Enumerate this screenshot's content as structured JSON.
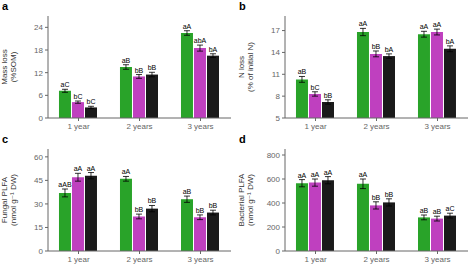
{
  "chart_data": [
    {
      "type": "bar",
      "title": "a",
      "y_label": "Mass loss\n(%SOM)",
      "categories": [
        "1 year",
        "2 years",
        "3 years"
      ],
      "ylim": [
        0,
        27
      ],
      "yticks": [
        0,
        6,
        12,
        18,
        24
      ],
      "grid": false,
      "series": [
        {
          "color": "#29a329",
          "values": [
            7.2,
            13.5,
            22.5
          ],
          "errors": [
            0.4,
            0.6,
            0.6
          ],
          "labels": [
            "aC",
            "aB",
            "aA"
          ]
        },
        {
          "color": "#bf40bf",
          "values": [
            4.2,
            11.0,
            18.5
          ],
          "errors": [
            0.3,
            0.5,
            0.8
          ],
          "labels": [
            "bC",
            "bB",
            "abA"
          ]
        },
        {
          "color": "#1a1a1a",
          "values": [
            2.8,
            11.5,
            16.5
          ],
          "errors": [
            0.3,
            0.6,
            0.5
          ],
          "labels": [
            "bC",
            "bB",
            "bA"
          ]
        }
      ]
    },
    {
      "type": "bar",
      "title": "b",
      "y_label": "N loss\n(% of initial N)",
      "categories": [
        "1 year",
        "2 years",
        "3 years"
      ],
      "ylim": [
        5,
        19
      ],
      "yticks": [
        5,
        8,
        11,
        14,
        17
      ],
      "grid": false,
      "series": [
        {
          "color": "#29a329",
          "values": [
            10.3,
            16.8,
            16.5
          ],
          "errors": [
            0.4,
            0.5,
            0.4
          ],
          "labels": [
            "aB",
            "aA",
            "aA"
          ]
        },
        {
          "color": "#bf40bf",
          "values": [
            8.3,
            13.8,
            16.8
          ],
          "errors": [
            0.3,
            0.4,
            0.4
          ],
          "labels": [
            "bC",
            "bB",
            "aA"
          ]
        },
        {
          "color": "#1a1a1a",
          "values": [
            7.2,
            13.5,
            14.5
          ],
          "errors": [
            0.3,
            0.3,
            0.4
          ],
          "labels": [
            "bB",
            "bA",
            "bA"
          ]
        }
      ]
    },
    {
      "type": "bar",
      "title": "c",
      "y_label": "Fungal PLFA\n(nmol g⁻¹ DW)",
      "categories": [
        "1 year",
        "2 years",
        "3 years"
      ],
      "ylim": [
        0,
        65
      ],
      "yticks": [
        0,
        15,
        30,
        45,
        60
      ],
      "grid": false,
      "series": [
        {
          "color": "#29a329",
          "values": [
            37.0,
            46.0,
            33.0
          ],
          "errors": [
            2.5,
            1.5,
            2.0
          ],
          "labels": [
            "aAB",
            "aA",
            "aB"
          ]
        },
        {
          "color": "#bf40bf",
          "values": [
            47.0,
            22.0,
            21.5
          ],
          "errors": [
            2.5,
            1.5,
            1.5
          ],
          "labels": [
            "aA",
            "bB",
            "bB"
          ]
        },
        {
          "color": "#1a1a1a",
          "values": [
            48.0,
            27.0,
            24.5
          ],
          "errors": [
            2.0,
            2.0,
            1.5
          ],
          "labels": [
            "aA",
            "bB",
            "bB"
          ]
        }
      ]
    },
    {
      "type": "bar",
      "title": "d",
      "y_label": "Bacterial PLFA\n(nmol g⁻¹ DW)",
      "categories": [
        "1 year",
        "2 years",
        "3 years"
      ],
      "ylim": [
        0,
        850
      ],
      "yticks": [
        0,
        200,
        400,
        600,
        800
      ],
      "grid": false,
      "series": [
        {
          "color": "#29a329",
          "values": [
            565,
            560,
            280
          ],
          "errors": [
            30,
            40,
            20
          ],
          "labels": [
            "aA",
            "aA",
            "aB"
          ]
        },
        {
          "color": "#bf40bf",
          "values": [
            570,
            380,
            270
          ],
          "errors": [
            30,
            30,
            20
          ],
          "labels": [
            "aA",
            "bB",
            "aB"
          ]
        },
        {
          "color": "#1a1a1a",
          "values": [
            590,
            405,
            295
          ],
          "errors": [
            30,
            30,
            20
          ],
          "labels": [
            "aA",
            "bB",
            "aC"
          ]
        }
      ]
    }
  ]
}
